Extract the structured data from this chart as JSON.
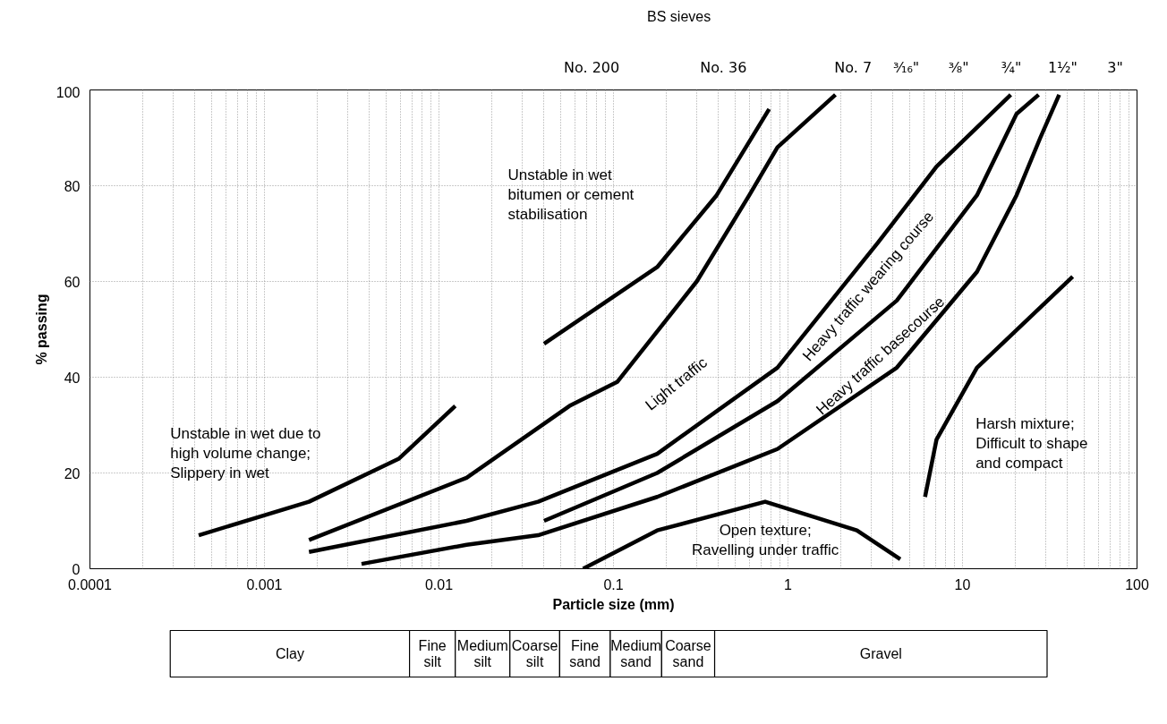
{
  "chart_data": {
    "type": "line",
    "xlabel": "Particle size (mm)",
    "ylabel": "% passing",
    "log": "x",
    "grid": true,
    "marker": "none",
    "line_style": "solid",
    "xlim": [
      0.0001,
      100
    ],
    "xticks": [
      0.0001,
      0.001,
      0.01,
      0.1,
      1,
      10,
      100
    ],
    "ylim": [
      0,
      100
    ],
    "yticks": [
      0,
      20,
      40,
      60,
      80,
      100
    ],
    "series": [
      {
        "color": "#000000",
        "x": [
          0.00042,
          0.0018,
          0.0059,
          0.0124
        ],
        "values": [
          7,
          14,
          23,
          34
        ]
      },
      {
        "color": "#000000",
        "x": [
          0.04,
          0.178,
          0.39,
          0.78
        ],
        "values": [
          47,
          63,
          78,
          96
        ]
      },
      {
        "color": "#000000",
        "x": [
          0.0018,
          0.0144,
          0.056,
          0.105,
          0.3,
          0.6,
          0.87,
          1.87
        ],
        "values": [
          6,
          19,
          34,
          39,
          60,
          78,
          88,
          99
        ]
      },
      {
        "color": "#000000",
        "x": [
          0.0018,
          0.0144,
          0.037,
          0.178,
          0.87,
          3.26,
          7.1,
          18.9
        ],
        "values": [
          3.5,
          10,
          14,
          24,
          42,
          68,
          84,
          99
        ]
      },
      {
        "color": "#000000",
        "x": [
          0.04,
          0.178,
          0.87,
          4.2,
          12.1,
          20.4,
          27.3
        ],
        "values": [
          10,
          20,
          35,
          56,
          78,
          95,
          99
        ]
      },
      {
        "color": "#000000",
        "x": [
          0.0036,
          0.0144,
          0.037,
          0.178,
          0.87,
          4.2,
          12.1,
          20.4,
          27.9,
          35.8
        ],
        "values": [
          1,
          5,
          7,
          15,
          25,
          42,
          62,
          78,
          90,
          99
        ]
      },
      {
        "color": "#000000",
        "x": [
          6.1,
          7.1,
          12.1,
          42.8
        ],
        "values": [
          15,
          27,
          42,
          61
        ]
      },
      {
        "color": "#000000",
        "x": [
          0.067,
          0.178,
          0.74,
          2.48,
          4.4
        ],
        "values": [
          0,
          8,
          14,
          8,
          2
        ]
      }
    ],
    "annotations": [
      "BS sieves",
      "No. 200",
      "No. 36",
      "No. 7",
      "³⁄₁₆\"",
      "³⁄₈\"",
      "¾\"",
      "1½\"",
      "3\"",
      "Unstable in wet due to\nhigh volume change;\nSlippery in wet",
      "Unstable in wet\nbitumen or cement\nstabilisation",
      "Light traffic",
      "Heavy traffic wearing course",
      "Heavy traffic basecourse",
      "Harsh mixture;\nDifficult to shape\nand compact",
      "Open texture;\nRavelling under traffic",
      "Clay",
      "Fine\nsilt",
      "Medium\nsilt",
      "Coarse\nsilt",
      "Fine\nsand",
      "Medium\nsand",
      "Coarse\nsand",
      "Gravel"
    ]
  }
}
